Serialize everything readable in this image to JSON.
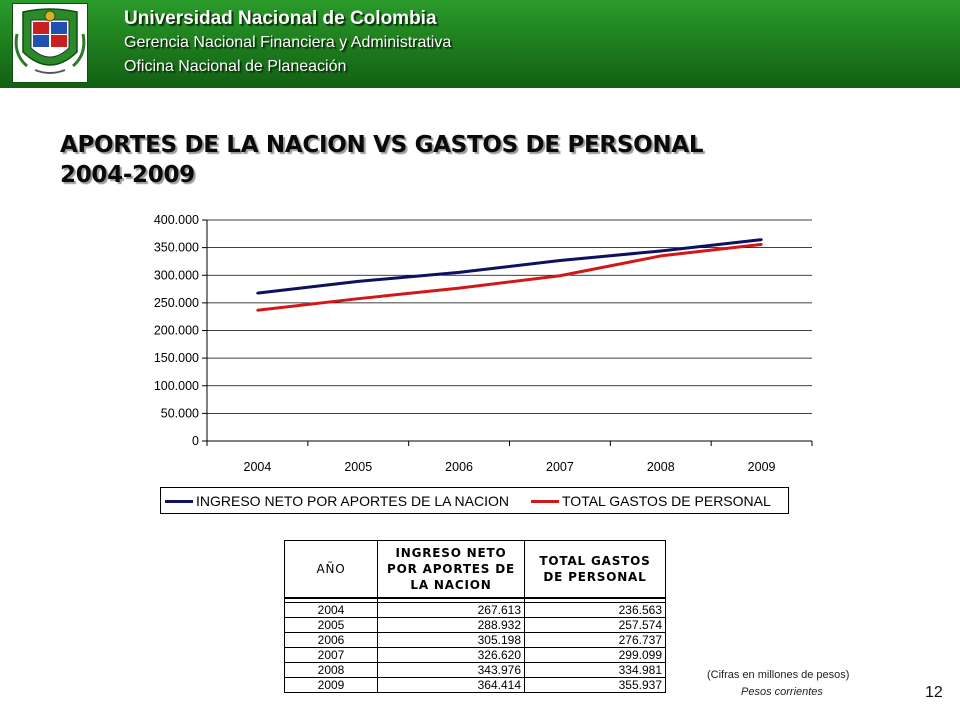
{
  "header": {
    "org_line1": "Universidad Nacional de Colombia",
    "org_line2": "Gerencia Nacional Financiera y Administrativa",
    "org_line3": "Oficina Nacional de Planeación"
  },
  "slide": {
    "title_line1": "APORTES DE LA NACION VS GASTOS DE PERSONAL",
    "title_line2": "2004-2009",
    "note_units": "(Cifras en millones de pesos)",
    "note_prices": "Pesos corrientes",
    "page_number": "12"
  },
  "chart_data": {
    "type": "line",
    "categories": [
      "2004",
      "2005",
      "2006",
      "2007",
      "2008",
      "2009"
    ],
    "y_ticks": [
      "0",
      "50.000",
      "100.000",
      "150.000",
      "200.000",
      "250.000",
      "300.000",
      "350.000",
      "400.000"
    ],
    "ylim": [
      0,
      400000
    ],
    "grid": true,
    "legend_position": "bottom",
    "series": [
      {
        "name": "INGRESO NETO POR APORTES DE LA NACION",
        "color": "#101060",
        "values": [
          267613,
          288932,
          305198,
          326620,
          343976,
          364414
        ]
      },
      {
        "name": "TOTAL GASTOS DE PERSONAL",
        "color": "#d01818",
        "values": [
          236563,
          257574,
          276737,
          299099,
          334981,
          355937
        ]
      }
    ]
  },
  "table": {
    "header_year": "AÑO",
    "header_col2": "INGRESO NETO POR APORTES DE LA NACION",
    "header_col3": "TOTAL GASTOS DE PERSONAL",
    "rows": [
      [
        "2004",
        "267.613",
        "236.563"
      ],
      [
        "2005",
        "288.932",
        "257.574"
      ],
      [
        "2006",
        "305.198",
        "276.737"
      ],
      [
        "2007",
        "326.620",
        "299.099"
      ],
      [
        "2008",
        "343.976",
        "334.981"
      ],
      [
        "2009",
        "364.414",
        "355.937"
      ]
    ]
  }
}
